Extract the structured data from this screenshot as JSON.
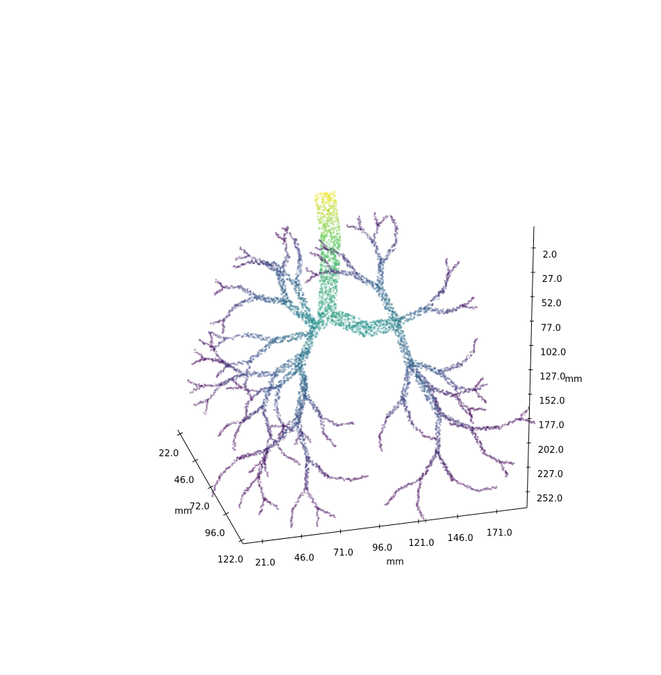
{
  "chart_data": {
    "type": "scatter",
    "subtype": "3d-point-cloud",
    "title": "",
    "subject": "airway tree",
    "colormap": "viridis",
    "colormap_stops": [
      "#440154",
      "#3b528b",
      "#21918c",
      "#5ec962",
      "#fde725"
    ],
    "grid": false,
    "legend": "none",
    "axes": {
      "x": {
        "label": "mm",
        "ticks": [
          "21.0",
          "46.0",
          "71.0",
          "96.0",
          "121.0",
          "146.0",
          "171.0"
        ],
        "range": [
          21,
          171
        ]
      },
      "y": {
        "label": "mm",
        "ticks": [
          "22.0",
          "46.0",
          "72.0",
          "96.0",
          "122.0"
        ],
        "range": [
          22,
          122
        ]
      },
      "z": {
        "label": "mm",
        "ticks": [
          "2.0",
          "27.0",
          "52.0",
          "77.0",
          "102.0",
          "127.0",
          "152.0",
          "177.0",
          "202.0",
          "227.0",
          "252.0"
        ],
        "range": [
          2,
          252
        ]
      }
    }
  }
}
